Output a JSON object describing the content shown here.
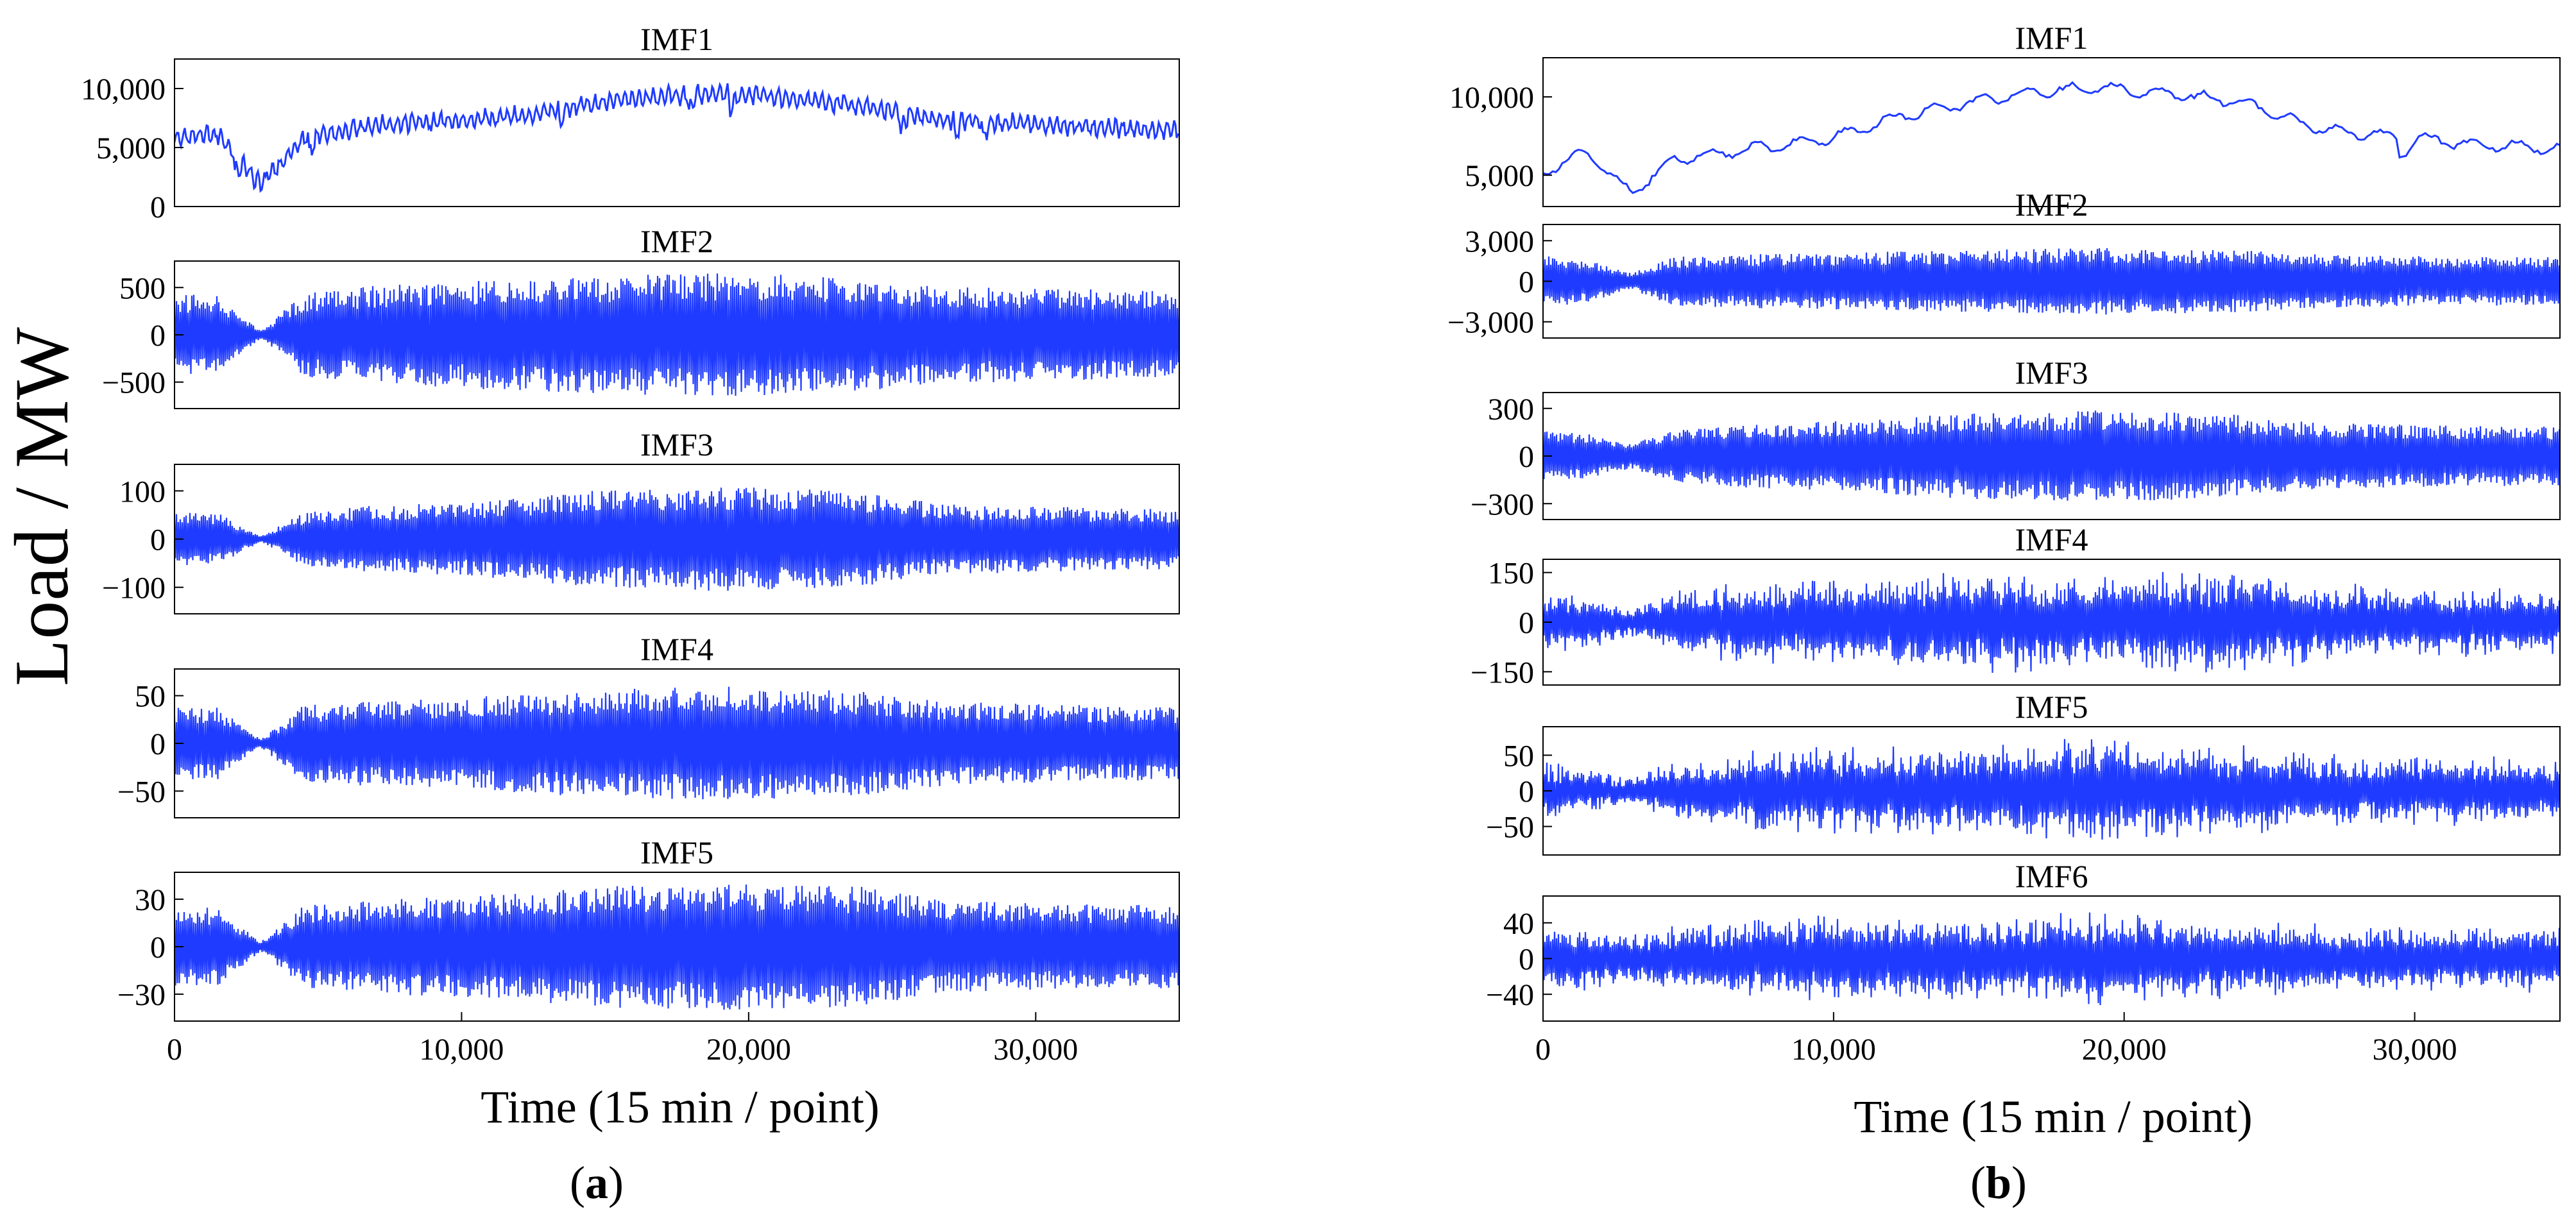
{
  "figure": {
    "ylabel": "Load / MW",
    "xlabel_a": "Time (15 min / point)",
    "xlabel_b": "Time (15 min / point)",
    "panel_a_prefix": "(",
    "panel_a_letter": "a",
    "panel_a_suffix": ")",
    "panel_b_prefix": "(",
    "panel_b_letter": "b",
    "panel_b_suffix": ")",
    "line_color": "#1f3bff"
  },
  "chart_data": [
    {
      "type": "line",
      "panel": "a",
      "title": "IMF1",
      "xlim": [
        0,
        35000
      ],
      "ylim": [
        0,
        12500
      ],
      "yticks": [
        0,
        5000,
        10000
      ],
      "ytick_labels": [
        "0",
        "5,000",
        "10,000"
      ],
      "series": [
        {
          "x": [
            0,
            1500,
            3000,
            4500,
            7000,
            10000,
            12000,
            14500,
            17000,
            19000,
            21000,
            24000,
            26500,
            29000,
            32000,
            35000
          ],
          "values": [
            5800,
            6100,
            1800,
            5800,
            6900,
            7300,
            7700,
            8700,
            9300,
            9600,
            9300,
            8500,
            7400,
            7100,
            6700,
            6400
          ]
        }
      ]
    },
    {
      "type": "line",
      "panel": "a",
      "title": "IMF2",
      "xlim": [
        0,
        35000
      ],
      "ylim": [
        -780,
        780
      ],
      "yticks": [
        -500,
        0,
        500
      ],
      "ytick_labels": [
        "−500",
        "0",
        "500"
      ],
      "series": [
        {
          "x": [
            0,
            1500,
            3000,
            4500,
            7000,
            10000,
            12000,
            14500,
            17000,
            19000,
            21000,
            24000,
            26500,
            29000,
            32000,
            35000
          ],
          "values": [
            420,
            430,
            40,
            440,
            520,
            560,
            600,
            620,
            640,
            650,
            640,
            600,
            520,
            500,
            480,
            470
          ]
        }
      ]
    },
    {
      "type": "line",
      "panel": "a",
      "title": "IMF3",
      "xlim": [
        0,
        35000
      ],
      "ylim": [
        -155,
        155
      ],
      "yticks": [
        -100,
        0,
        100
      ],
      "ytick_labels": [
        "−100",
        "0",
        "100"
      ],
      "series": [
        {
          "x": [
            0,
            1500,
            3000,
            4500,
            7000,
            10000,
            12000,
            14500,
            17000,
            19000,
            21000,
            24000,
            26500,
            29000,
            32000,
            35000
          ],
          "values": [
            55,
            55,
            6,
            55,
            70,
            75,
            85,
            100,
            105,
            110,
            105,
            100,
            75,
            70,
            65,
            62
          ]
        }
      ]
    },
    {
      "type": "line",
      "panel": "a",
      "title": "IMF4",
      "xlim": [
        0,
        35000
      ],
      "ylim": [
        -78,
        78
      ],
      "yticks": [
        -50,
        0,
        50
      ],
      "ytick_labels": [
        "−50",
        "0",
        "50"
      ],
      "series": [
        {
          "x": [
            0,
            1500,
            3000,
            4500,
            7000,
            10000,
            12000,
            14500,
            17000,
            19000,
            21000,
            24000,
            26500,
            29000,
            32000,
            35000
          ],
          "values": [
            38,
            38,
            4,
            40,
            45,
            48,
            52,
            56,
            58,
            60,
            58,
            55,
            45,
            42,
            40,
            38
          ]
        }
      ]
    },
    {
      "type": "line",
      "panel": "a",
      "title": "IMF5",
      "xlim": [
        0,
        35000
      ],
      "ylim": [
        -47,
        47
      ],
      "yticks": [
        -30,
        0,
        30
      ],
      "ytick_labels": [
        "−30",
        "0",
        "30"
      ],
      "series": [
        {
          "x": [
            0,
            1500,
            3000,
            4500,
            7000,
            10000,
            12000,
            14500,
            17000,
            19000,
            21000,
            24000,
            26500,
            29000,
            32000,
            35000
          ],
          "values": [
            25,
            25,
            3,
            26,
            30,
            32,
            34,
            38,
            40,
            40,
            39,
            38,
            30,
            28,
            27,
            26
          ]
        }
      ],
      "xticks": [
        0,
        10000,
        20000,
        30000
      ],
      "xtick_labels": [
        "0",
        "10,000",
        "20,000",
        "30,000"
      ]
    },
    {
      "type": "line",
      "panel": "b",
      "title": "IMF1",
      "xlim": [
        0,
        35000
      ],
      "ylim": [
        3000,
        12500
      ],
      "yticks": [
        5000,
        10000
      ],
      "ytick_labels": [
        "5,000",
        "10,000"
      ],
      "series": [
        {
          "x": [
            0,
            1500,
            3000,
            4500,
            7000,
            10000,
            12000,
            14500,
            17000,
            19000,
            21000,
            24000,
            26500,
            29000,
            32000,
            35000
          ],
          "values": [
            5200,
            6500,
            3800,
            6000,
            6600,
            7400,
            8600,
            9600,
            10300,
            10600,
            10300,
            9700,
            8100,
            7500,
            7000,
            6700
          ]
        }
      ]
    },
    {
      "type": "line",
      "panel": "b",
      "title": "IMF2",
      "xlim": [
        0,
        35000
      ],
      "ylim": [
        -4200,
        4200
      ],
      "yticks": [
        -3000,
        0,
        3000
      ],
      "ytick_labels": [
        "−3,000",
        "0",
        "3,000"
      ],
      "series": [
        {
          "x": [
            0,
            1500,
            3000,
            4500,
            7000,
            10000,
            12000,
            14500,
            17000,
            19000,
            21000,
            24000,
            26500,
            29000,
            32000,
            35000
          ],
          "values": [
            1900,
            1600,
            600,
            1800,
            2000,
            2100,
            2200,
            2300,
            2400,
            2500,
            2400,
            2300,
            2000,
            1900,
            1800,
            1800
          ]
        }
      ]
    },
    {
      "type": "line",
      "panel": "b",
      "title": "IMF3",
      "xlim": [
        0,
        35000
      ],
      "ylim": [
        -400,
        400
      ],
      "yticks": [
        -300,
        0,
        300
      ],
      "ytick_labels": [
        "−300",
        "0",
        "300"
      ],
      "series": [
        {
          "x": [
            0,
            1500,
            3000,
            4500,
            7000,
            10000,
            12000,
            14500,
            17000,
            19000,
            21000,
            24000,
            26500,
            29000,
            32000,
            35000
          ],
          "values": [
            160,
            140,
            80,
            160,
            200,
            220,
            240,
            270,
            280,
            290,
            280,
            260,
            210,
            200,
            190,
            190
          ]
        }
      ]
    },
    {
      "type": "line",
      "panel": "b",
      "title": "IMF4",
      "xlim": [
        0,
        35000
      ],
      "ylim": [
        -190,
        190
      ],
      "yticks": [
        -150,
        0,
        150
      ],
      "ytick_labels": [
        "−150",
        "0",
        "150"
      ],
      "series": [
        {
          "x": [
            0,
            1500,
            3000,
            4500,
            7000,
            10000,
            12000,
            14500,
            17000,
            19000,
            21000,
            24000,
            26500,
            29000,
            32000,
            35000
          ],
          "values": [
            80,
            70,
            40,
            80,
            100,
            110,
            120,
            130,
            120,
            110,
            120,
            130,
            100,
            90,
            85,
            80
          ]
        }
      ]
    },
    {
      "type": "line",
      "panel": "b",
      "title": "IMF5",
      "xlim": [
        0,
        35000
      ],
      "ylim": [
        -90,
        90
      ],
      "yticks": [
        -50,
        0,
        50
      ],
      "ytick_labels": [
        "−50",
        "0",
        "50"
      ],
      "series": [
        {
          "x": [
            0,
            1500,
            3000,
            4500,
            7000,
            10000,
            12000,
            14500,
            17000,
            19000,
            21000,
            24000,
            26500,
            29000,
            32000,
            35000
          ],
          "values": [
            35,
            25,
            15,
            35,
            45,
            50,
            50,
            55,
            60,
            60,
            55,
            55,
            45,
            40,
            40,
            35
          ]
        }
      ]
    },
    {
      "type": "line",
      "panel": "b",
      "title": "IMF6",
      "xlim": [
        0,
        35000
      ],
      "ylim": [
        -70,
        70
      ],
      "yticks": [
        -40,
        0,
        40
      ],
      "ytick_labels": [
        "−40",
        "0",
        "40"
      ],
      "series": [
        {
          "x": [
            0,
            1500,
            3000,
            4500,
            7000,
            10000,
            12000,
            14500,
            17000,
            19000,
            21000,
            24000,
            26500,
            29000,
            32000,
            35000
          ],
          "values": [
            30,
            28,
            25,
            30,
            38,
            40,
            40,
            40,
            38,
            45,
            38,
            35,
            32,
            30,
            30,
            30
          ]
        }
      ],
      "xticks": [
        0,
        10000,
        20000,
        30000
      ],
      "xtick_labels": [
        "0",
        "10,000",
        "20,000",
        "30,000"
      ]
    }
  ]
}
